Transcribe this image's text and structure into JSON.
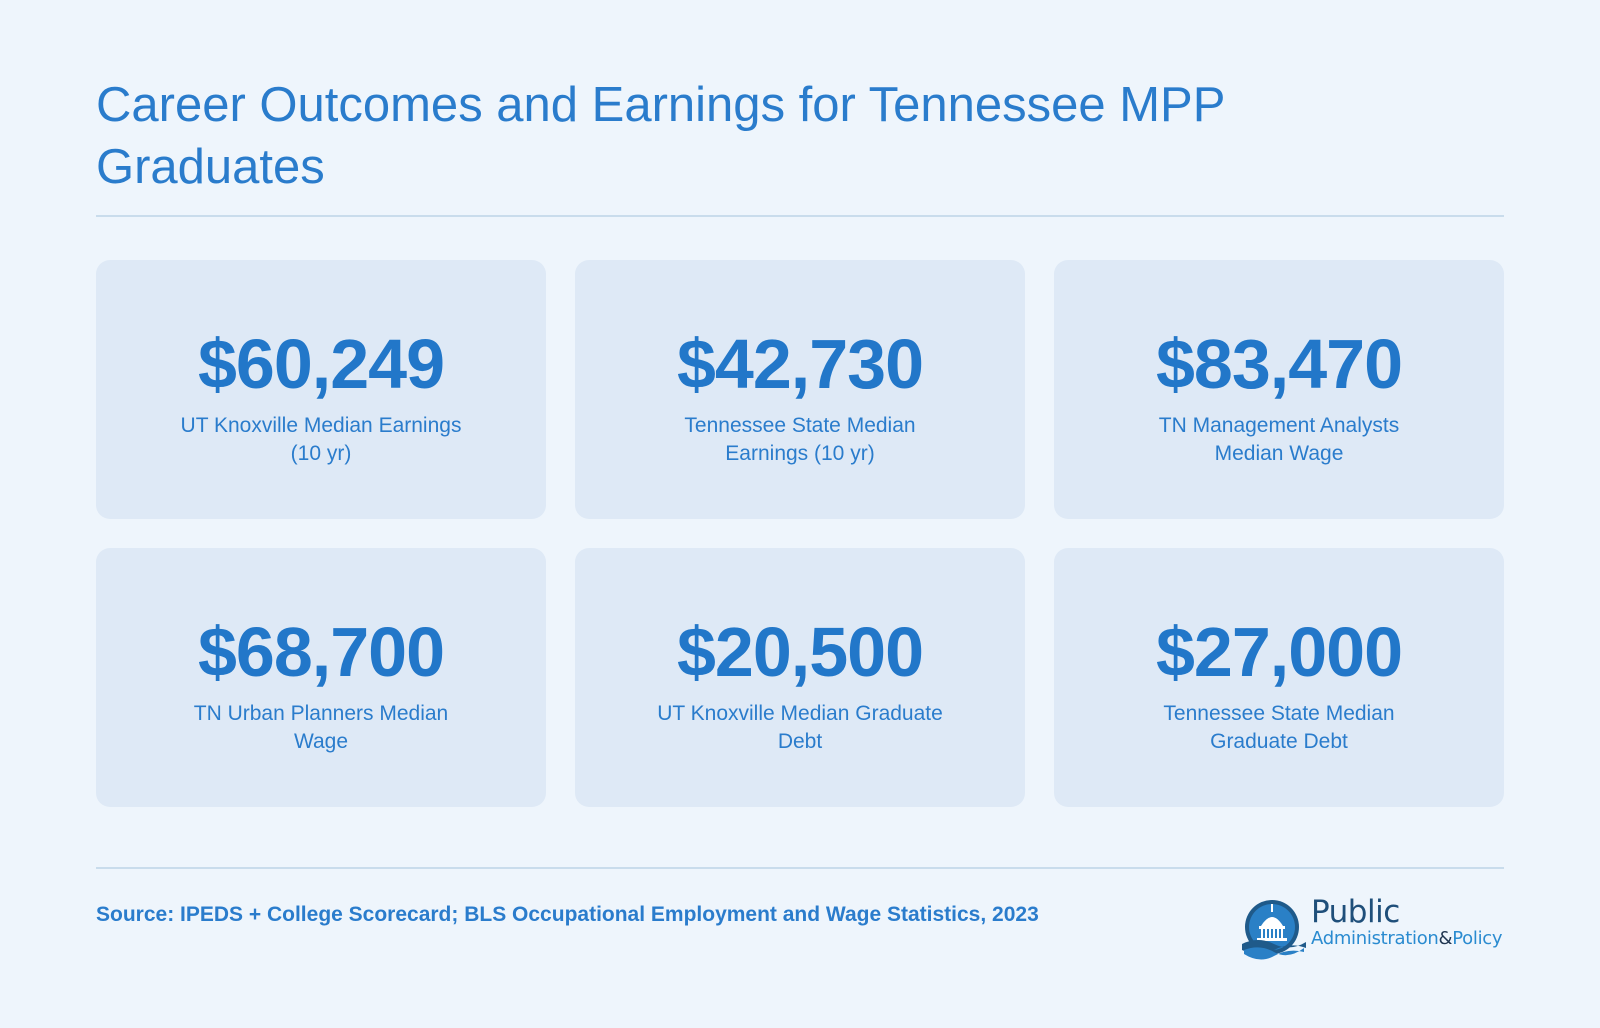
{
  "title": "Career Outcomes and Earnings for Tennessee MPP Graduates",
  "cards": [
    {
      "value": "$60,249",
      "label": "UT Knoxville Median Earnings (10 yr)"
    },
    {
      "value": "$42,730",
      "label": "Tennessee State Median Earnings (10 yr)"
    },
    {
      "value": "$83,470",
      "label": "TN Management Analysts Median Wage"
    },
    {
      "value": "$68,700",
      "label": "TN Urban Planners Median Wage"
    },
    {
      "value": "$20,500",
      "label": "UT Knoxville Median Graduate Debt"
    },
    {
      "value": "$27,000",
      "label": "Tennessee State Median Graduate Debt"
    }
  ],
  "source": "Source: IPEDS + College Scorecard; BLS Occupational Employment and Wage Statistics, 2023",
  "logo": {
    "word1": "Public",
    "word2": "Administration",
    "amp": "&",
    "word3": "Policy",
    "icon": "capitol-dome-icon"
  },
  "colors": {
    "background": "#eef5fc",
    "card": "#dee9f6",
    "accent": "#2277c9",
    "rule": "#c9dcec"
  }
}
